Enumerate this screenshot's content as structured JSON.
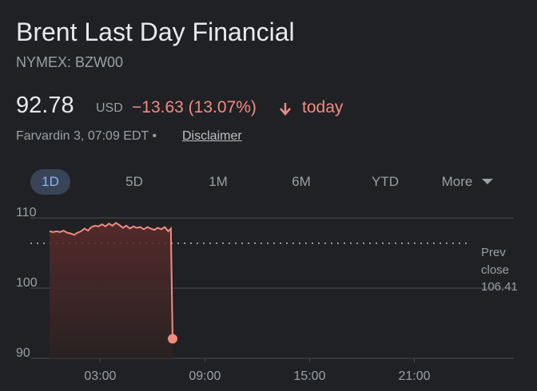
{
  "header": {
    "title": "Brent Last Day Financial",
    "ticker": "NYMEX: BZW00",
    "price": "92.78",
    "currency": "USD",
    "change": "−13.63 (13.07%)",
    "period": "today",
    "timestamp": "Farvardin 3, 07:09 EDT",
    "disclaimer": "Disclaimer"
  },
  "tabs": [
    "1D",
    "5D",
    "1M",
    "6M",
    "YTD",
    "More"
  ],
  "chart_data": {
    "type": "line",
    "color": "#f28b82",
    "x": [
      0.1,
      0.3,
      0.5,
      0.7,
      0.9,
      1.1,
      1.3,
      1.5,
      1.7,
      1.9,
      2.1,
      2.3,
      2.5,
      2.7,
      2.9,
      3.1,
      3.3,
      3.5,
      3.7,
      3.9,
      4.1,
      4.3,
      4.5,
      4.7,
      4.9,
      5.1,
      5.3,
      5.5,
      5.7,
      5.9,
      6.1,
      6.3,
      6.5,
      6.7,
      6.9,
      7.05,
      7.15
    ],
    "values": [
      108.1,
      108.0,
      108.1,
      108.0,
      108.2,
      107.9,
      107.8,
      107.6,
      107.9,
      108.1,
      108.5,
      108.2,
      108.7,
      108.9,
      108.8,
      109.1,
      108.8,
      109.2,
      108.9,
      109.3,
      109.0,
      108.6,
      108.9,
      108.5,
      108.8,
      108.6,
      108.7,
      108.4,
      108.7,
      108.5,
      108.3,
      108.6,
      108.4,
      108.7,
      108.1,
      108.5,
      92.78
    ],
    "xlim": [
      -1,
      26.7
    ],
    "xticks": [
      {
        "value": 3,
        "label": "03:00"
      },
      {
        "value": 9,
        "label": "09:00"
      },
      {
        "value": 15,
        "label": "15:00"
      },
      {
        "value": 21,
        "label": "21:00"
      }
    ],
    "ylim": [
      90,
      111.5
    ],
    "yticks": [
      90,
      100,
      110
    ],
    "grid": true,
    "prev_close": 106.41,
    "prev_close_label": "Prev close"
  }
}
